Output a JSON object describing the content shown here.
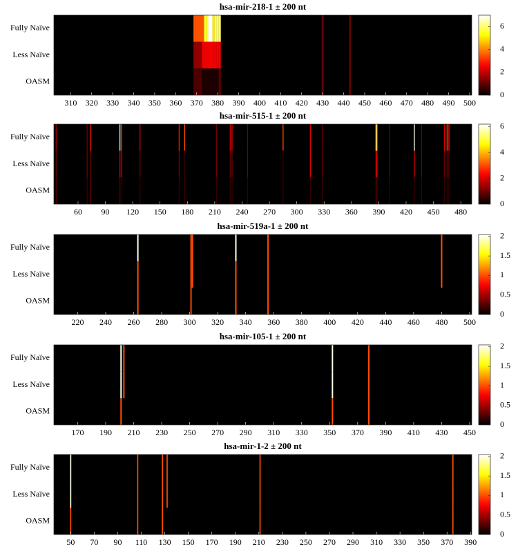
{
  "chart_data": [
    {
      "type": "heatmap",
      "title": "hsa-mir-218-1 ± 200 nt",
      "rows": [
        "Fully Naïve",
        "Less Naïve",
        "OASM"
      ],
      "xlim": [
        302,
        501
      ],
      "xticks": [
        310,
        320,
        330,
        340,
        350,
        360,
        370,
        380,
        390,
        400,
        410,
        420,
        430,
        440,
        450,
        460,
        470,
        480,
        490,
        500
      ],
      "clim": [
        0,
        7
      ],
      "cticks": [
        0,
        2,
        4,
        6
      ],
      "cells": [
        {
          "x": 369,
          "values": [
            3.5,
            1.5,
            0.8
          ]
        },
        {
          "x": 370,
          "values": [
            3.5,
            1.5,
            0.8
          ]
        },
        {
          "x": 371,
          "values": [
            3.5,
            1.5,
            0.8
          ]
        },
        {
          "x": 372,
          "values": [
            3.5,
            1.5,
            0.8
          ]
        },
        {
          "x": 373,
          "values": [
            3.5,
            2.5,
            0.3
          ]
        },
        {
          "x": 374,
          "values": [
            5.5,
            2.5,
            0.3
          ]
        },
        {
          "x": 375,
          "values": [
            5.5,
            2.5,
            0.3
          ]
        },
        {
          "x": 376,
          "values": [
            7,
            2.5,
            0.3
          ]
        },
        {
          "x": 377,
          "values": [
            7,
            2.5,
            0.3
          ]
        },
        {
          "x": 378,
          "values": [
            5,
            2.5,
            0.3
          ]
        },
        {
          "x": 379,
          "values": [
            6,
            2.5,
            0.3
          ]
        },
        {
          "x": 380,
          "values": [
            6,
            2.5,
            0.3
          ]
        },
        {
          "x": 381,
          "values": [
            6,
            2.5,
            1
          ]
        },
        {
          "x": 430,
          "values": [
            1,
            1,
            1
          ]
        },
        {
          "x": 443,
          "values": [
            1,
            1,
            1
          ]
        }
      ]
    },
    {
      "type": "heatmap",
      "title": "hsa-mir-515-1 ± 200 nt",
      "rows": [
        "Fully Naïve",
        "Less Naïve",
        "OASM"
      ],
      "xlim": [
        33.5,
        492
      ],
      "xticks": [
        60,
        90,
        120,
        150,
        180,
        210,
        240,
        270,
        300,
        330,
        360,
        390,
        420,
        450,
        480
      ],
      "clim": [
        0,
        6.2
      ],
      "cticks": [
        0,
        2,
        4,
        6
      ],
      "cells": [
        {
          "x": 36,
          "values": [
            1.5,
            1,
            0.8
          ]
        },
        {
          "x": 70,
          "values": [
            1,
            1,
            0.5
          ]
        },
        {
          "x": 74,
          "values": [
            2.5,
            1,
            1
          ]
        },
        {
          "x": 106,
          "values": [
            6,
            2,
            0.8
          ]
        },
        {
          "x": 108,
          "values": [
            3,
            2,
            0.5
          ]
        },
        {
          "x": 128,
          "values": [
            2,
            1,
            0.5
          ]
        },
        {
          "x": 171,
          "values": [
            2.5,
            1,
            0.5
          ]
        },
        {
          "x": 177,
          "values": [
            3,
            0.5,
            0.5
          ]
        },
        {
          "x": 212,
          "values": [
            1,
            1,
            0.5
          ]
        },
        {
          "x": 227,
          "values": [
            2,
            1,
            0.5
          ]
        },
        {
          "x": 229,
          "values": [
            2,
            1,
            0.5
          ]
        },
        {
          "x": 246,
          "values": [
            1,
            1,
            0.5
          ]
        },
        {
          "x": 285,
          "values": [
            3,
            0.5,
            0.5
          ]
        },
        {
          "x": 315,
          "values": [
            2,
            2,
            0.5
          ]
        },
        {
          "x": 328,
          "values": [
            1,
            1,
            0.5
          ]
        },
        {
          "x": 387,
          "values": [
            6,
            2,
            0.8
          ]
        },
        {
          "x": 388,
          "values": [
            4,
            2,
            0.5
          ]
        },
        {
          "x": 402,
          "values": [
            1,
            1,
            0.5
          ]
        },
        {
          "x": 429,
          "values": [
            6.1,
            2,
            0.5
          ]
        },
        {
          "x": 437,
          "values": [
            1,
            1,
            0.5
          ]
        },
        {
          "x": 462,
          "values": [
            2,
            1,
            0.5
          ]
        },
        {
          "x": 465,
          "values": [
            3,
            1,
            0.5
          ]
        },
        {
          "x": 467,
          "values": [
            2.5,
            1,
            0.5
          ]
        }
      ]
    },
    {
      "type": "heatmap",
      "title": "hsa-mir-519a-1 ± 200 nt",
      "rows": [
        "Fully Naïve",
        "Less Naïve",
        "OASM"
      ],
      "xlim": [
        203,
        501.5
      ],
      "xticks": [
        220,
        240,
        260,
        280,
        300,
        320,
        340,
        360,
        380,
        400,
        420,
        440,
        460,
        480,
        500
      ],
      "clim": [
        0,
        2.05
      ],
      "cticks": [
        0,
        0.5,
        1,
        1.5,
        2
      ],
      "cells": [
        {
          "x": 263,
          "values": [
            2,
            1,
            1
          ]
        },
        {
          "x": 301,
          "values": [
            1,
            1,
            1
          ]
        },
        {
          "x": 302,
          "values": [
            1,
            1,
            0
          ]
        },
        {
          "x": 333,
          "values": [
            2,
            1,
            1
          ]
        },
        {
          "x": 356,
          "values": [
            1,
            1,
            1
          ]
        },
        {
          "x": 480,
          "values": [
            1,
            1,
            0
          ]
        }
      ]
    },
    {
      "type": "heatmap",
      "title": "hsa-mir-105-1 ± 200 nt",
      "rows": [
        "Fully Naïve",
        "Less Naïve",
        "OASM"
      ],
      "xlim": [
        153,
        451.5
      ],
      "xticks": [
        170,
        190,
        210,
        230,
        250,
        270,
        290,
        310,
        330,
        350,
        370,
        390,
        410,
        430,
        450
      ],
      "clim": [
        0,
        2.05
      ],
      "cticks": [
        0,
        0.5,
        1,
        1.5,
        2
      ],
      "cells": [
        {
          "x": 201,
          "values": [
            2,
            2,
            1
          ]
        },
        {
          "x": 203,
          "values": [
            1,
            1,
            0
          ]
        },
        {
          "x": 352,
          "values": [
            2,
            2,
            1
          ]
        },
        {
          "x": 378,
          "values": [
            1,
            1,
            1
          ]
        }
      ]
    },
    {
      "type": "heatmap",
      "title": "hsa-mir-1-2 ± 200 nt",
      "rows": [
        "Fully Naïve",
        "Less Naïve",
        "OASM"
      ],
      "xlim": [
        35.7,
        391
      ],
      "xticks": [
        50,
        70,
        90,
        110,
        130,
        150,
        170,
        190,
        210,
        230,
        250,
        270,
        290,
        310,
        330,
        350,
        370,
        390
      ],
      "clim": [
        0,
        2.05
      ],
      "cticks": [
        0,
        0.5,
        1,
        1.5,
        2
      ],
      "cells": [
        {
          "x": 50,
          "values": [
            2,
            2,
            1
          ]
        },
        {
          "x": 107,
          "values": [
            1,
            1,
            1
          ]
        },
        {
          "x": 128,
          "values": [
            1,
            1,
            1
          ]
        },
        {
          "x": 132,
          "values": [
            1,
            1,
            0
          ]
        },
        {
          "x": 211,
          "values": [
            1,
            1,
            1
          ]
        },
        {
          "x": 375,
          "values": [
            1,
            1,
            1
          ]
        }
      ]
    }
  ]
}
